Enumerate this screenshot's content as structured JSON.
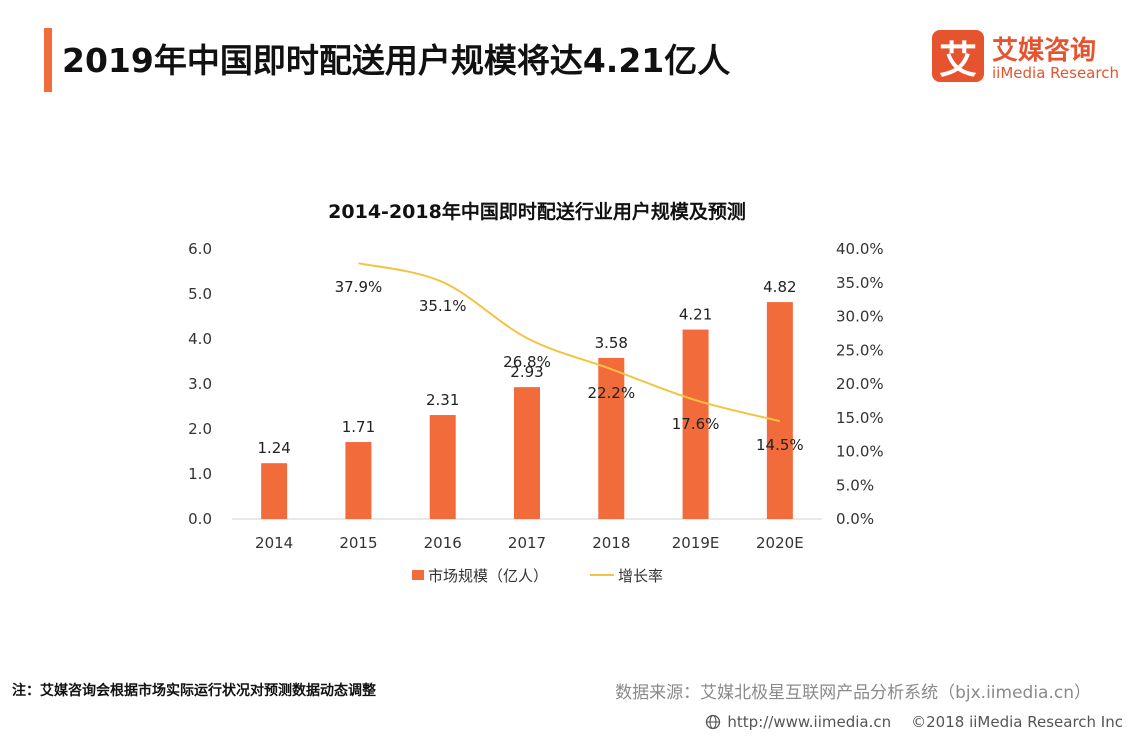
{
  "header": {
    "title": "2019年中国即时配送用户规模将达4.21亿人"
  },
  "logo": {
    "mark": "艾",
    "name_cn": "艾媒咨询",
    "name_en": "iiMedia Research"
  },
  "chart_data": {
    "type": "bar",
    "title": "2014-2018年中国即时配送行业用户规模及预测",
    "categories": [
      "2014",
      "2015",
      "2016",
      "2017",
      "2018",
      "2019E",
      "2020E"
    ],
    "series": [
      {
        "name": "市场规模（亿人）",
        "type": "bar",
        "axis": "left",
        "color": "#f26b3a",
        "values": [
          1.24,
          1.71,
          2.31,
          2.93,
          3.58,
          4.21,
          4.82
        ],
        "labels": [
          "1.24",
          "1.71",
          "2.31",
          "2.93",
          "3.58",
          "4.21",
          "4.82"
        ]
      },
      {
        "name": "增长率",
        "type": "line",
        "axis": "right",
        "color": "#f5c342",
        "values": [
          null,
          37.9,
          35.1,
          26.8,
          22.2,
          17.6,
          14.5
        ],
        "labels": [
          "",
          "37.9%",
          "35.1%",
          "26.8%",
          "22.2%",
          "17.6%",
          "14.5%"
        ]
      }
    ],
    "y_left": {
      "min": 0,
      "max": 6,
      "ticks": [
        "0.0",
        "1.0",
        "2.0",
        "3.0",
        "4.0",
        "5.0",
        "6.0"
      ]
    },
    "y_right": {
      "min": 0,
      "max": 40,
      "ticks": [
        "0.0%",
        "5.0%",
        "10.0%",
        "15.0%",
        "20.0%",
        "25.0%",
        "30.0%",
        "35.0%",
        "40.0%"
      ]
    },
    "grid": false,
    "legend": "bottom"
  },
  "footer": {
    "note": "注：艾媒咨询会根据市场实际运行状况对预测数据动态调整",
    "source": "数据来源：艾媒北极星互联网产品分析系统（bjx.iimedia.cn）",
    "url": "http://www.iimedia.cn",
    "copyright": "©2018  iiMedia Research  Inc"
  }
}
